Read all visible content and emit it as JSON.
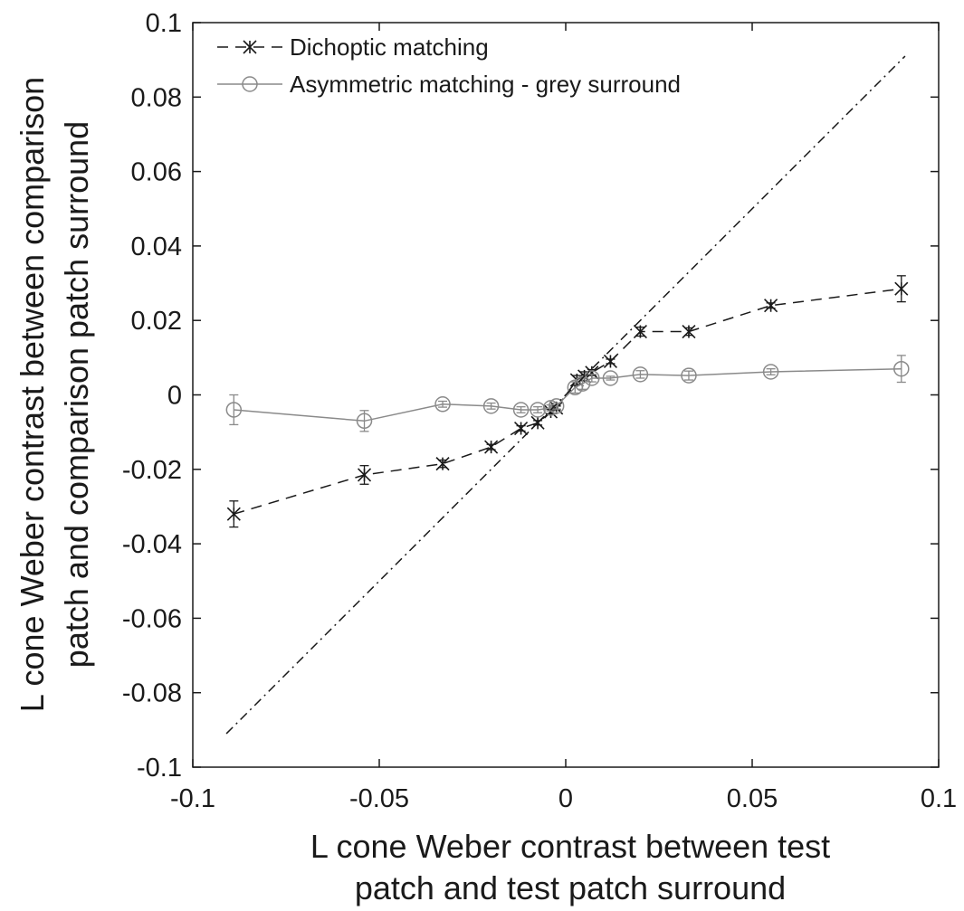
{
  "chart_data": {
    "type": "line",
    "xlabel": [
      "L cone Weber contrast between test",
      "patch and test patch surround"
    ],
    "ylabel": [
      "L cone Weber contrast between comparison",
      "patch and comparison patch surround"
    ],
    "xlim": [
      -0.1,
      0.1
    ],
    "ylim": [
      -0.1,
      0.1
    ],
    "xticks": [
      -0.1,
      -0.05,
      0,
      0.05,
      0.1
    ],
    "xtick_labels": [
      "-0.1",
      "-0.05",
      "0",
      "0.05",
      "0.1"
    ],
    "yticks": [
      -0.1,
      -0.08,
      -0.06,
      -0.04,
      -0.02,
      0,
      0.02,
      0.04,
      0.06,
      0.08,
      0.1
    ],
    "ytick_labels": [
      "-0.1",
      "-0.08",
      "-0.06",
      "-0.04",
      "-0.02",
      "0",
      "0.02",
      "0.04",
      "0.06",
      "0.08",
      "0.1"
    ],
    "grid": false,
    "legend_position": "top-left",
    "series": [
      {
        "name": "Dichoptic matching",
        "marker": "asterisk",
        "line": "dashed",
        "color": "#1a1a1a",
        "x": [
          -0.089,
          -0.054,
          -0.033,
          -0.02,
          -0.012,
          -0.0075,
          -0.004,
          -0.0025,
          0.003,
          0.005,
          0.007,
          0.012,
          0.02,
          0.033,
          0.055,
          0.09
        ],
        "y": [
          -0.032,
          -0.0215,
          -0.0185,
          -0.014,
          -0.009,
          -0.0075,
          -0.0045,
          -0.0035,
          0.004,
          0.005,
          0.006,
          0.009,
          0.017,
          0.017,
          0.024,
          0.0285
        ],
        "err": [
          0.0035,
          0.0025,
          0.001,
          0.0007,
          0.0007,
          0.0006,
          0.0006,
          0.0005,
          0.0012,
          0.0012,
          0.0008,
          0.0006,
          0.0012,
          0.001,
          0.0007,
          0.0035
        ]
      },
      {
        "name": "Asymmetric matching - grey surround",
        "marker": "circle",
        "line": "solid",
        "color": "#8a8a8a",
        "x": [
          -0.089,
          -0.054,
          -0.033,
          -0.02,
          -0.012,
          -0.0075,
          -0.004,
          -0.0025,
          0.0025,
          0.0045,
          0.007,
          0.012,
          0.02,
          0.033,
          0.055,
          0.09
        ],
        "y": [
          -0.004,
          -0.007,
          -0.0025,
          -0.003,
          -0.004,
          -0.004,
          -0.0035,
          -0.003,
          0.002,
          0.003,
          0.0045,
          0.0045,
          0.0055,
          0.0052,
          0.0062,
          0.007
        ],
        "err": [
          0.004,
          0.0028,
          0.0008,
          0.0008,
          0.0008,
          0.0008,
          0.0008,
          0.0008,
          0.0015,
          0.0015,
          0.001,
          0.0005,
          0.001,
          0.0012,
          0.0008,
          0.0036
        ]
      },
      {
        "name": "",
        "marker": "none",
        "line": "dashdot",
        "color": "#1a1a1a",
        "x": [
          -0.091,
          0.091
        ],
        "y": [
          -0.091,
          0.091
        ]
      }
    ]
  }
}
